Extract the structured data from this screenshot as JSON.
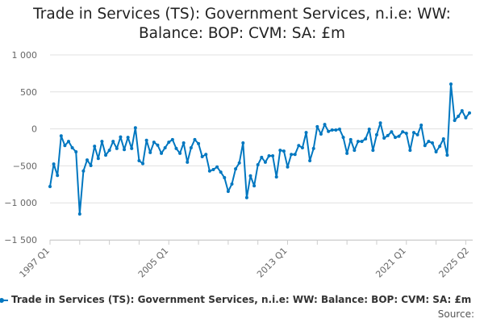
{
  "chart_data": {
    "type": "line",
    "title": "Trade in Services (TS): Government Services, n.i.e: WW: Balance: BOP: CVM: SA: £m",
    "ylim": [
      -1500,
      1000
    ],
    "yticks": [
      1000,
      500,
      0,
      -500,
      -1000,
      -1500
    ],
    "ytick_labels": [
      "1 000",
      "500",
      "0",
      "−500",
      "−1 000",
      "−1 500"
    ],
    "xtick_labels": [
      "1997 Q1",
      "2005 Q1",
      "2013 Q1",
      "2021 Q1",
      "2025 Q2"
    ],
    "grid": "horizontal",
    "legend_placement": "bottom",
    "color": "#0077c0",
    "series": [
      {
        "name": "Trade in Services (TS): Government Services, n.i.e: WW: Balance: BOP: CVM: SA: £m",
        "values": [
          -780,
          -475,
          -630,
          -95,
          -225,
          -170,
          -255,
          -310,
          -1150,
          -570,
          -420,
          -495,
          -235,
          -400,
          -170,
          -355,
          -290,
          -170,
          -265,
          -110,
          -280,
          -115,
          -265,
          15,
          -430,
          -470,
          -155,
          -320,
          -180,
          -220,
          -330,
          -255,
          -180,
          -145,
          -265,
          -330,
          -190,
          -450,
          -255,
          -145,
          -200,
          -375,
          -345,
          -570,
          -550,
          -515,
          -585,
          -660,
          -845,
          -745,
          -540,
          -460,
          -190,
          -930,
          -635,
          -770,
          -485,
          -385,
          -450,
          -365,
          -365,
          -650,
          -290,
          -300,
          -515,
          -345,
          -345,
          -225,
          -255,
          -50,
          -430,
          -265,
          30,
          -70,
          60,
          -35,
          -15,
          -15,
          -5,
          -115,
          -330,
          -145,
          -290,
          -170,
          -170,
          -135,
          -5,
          -290,
          -80,
          80,
          -125,
          -90,
          -40,
          -115,
          -100,
          -40,
          -60,
          -290,
          -50,
          -80,
          50,
          -225,
          -170,
          -190,
          -310,
          -235,
          -135,
          -355,
          605,
          115,
          170,
          245,
          150,
          215
        ]
      }
    ],
    "x_start": "1997 Q1",
    "x_end": "2025 Q2"
  },
  "source_label": "Source:"
}
